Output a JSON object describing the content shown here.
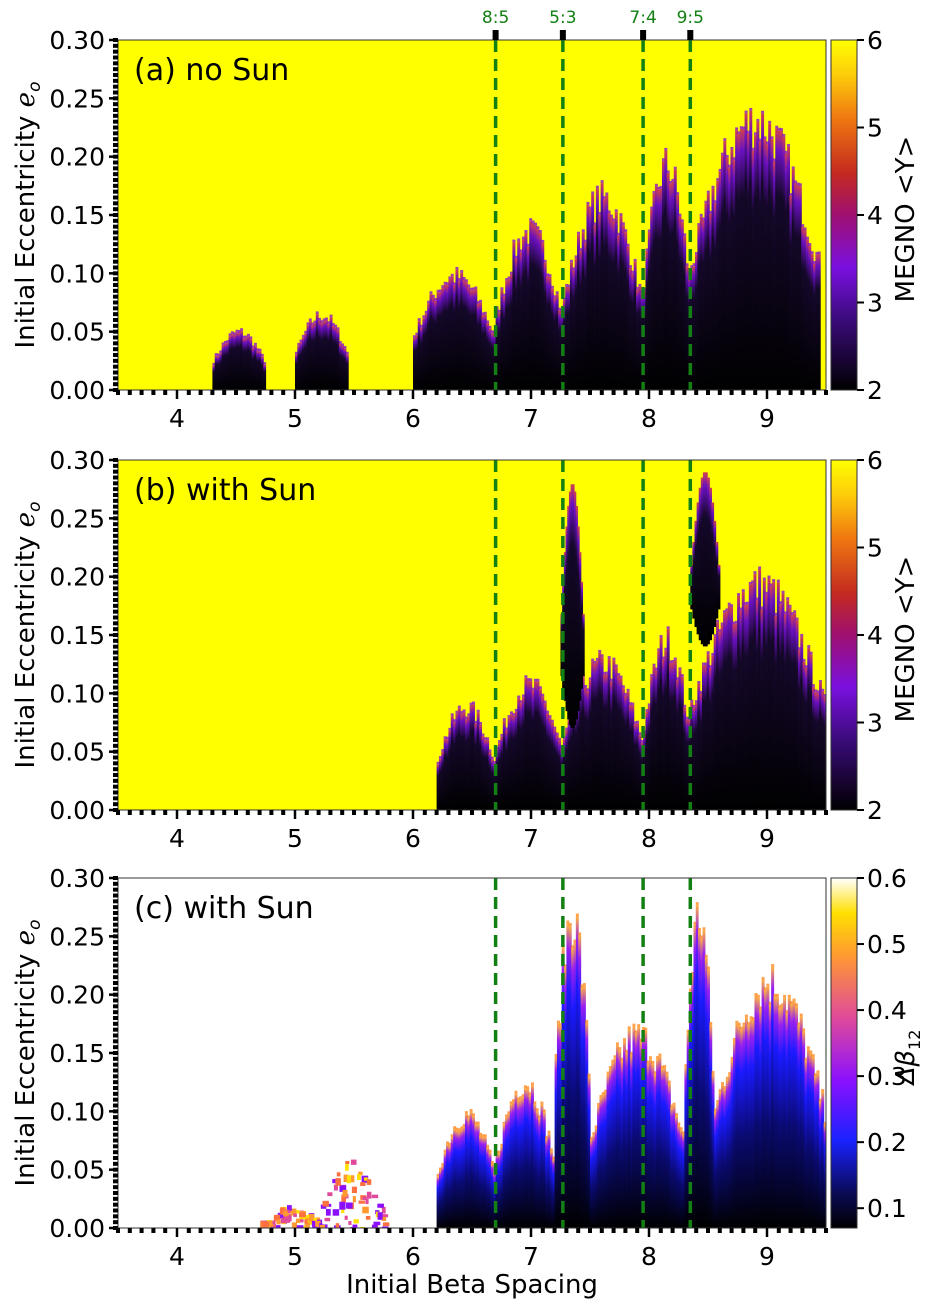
{
  "figure": {
    "xlabel": "Initial Beta Spacing",
    "ylabel_text": "Initial Eccentricity ",
    "ylabel_sym": "e",
    "ylabel_sub": "o"
  },
  "resonances": [
    {
      "label": "8:5",
      "x": 6.7
    },
    {
      "label": "5:3",
      "x": 7.27
    },
    {
      "label": "7:4",
      "x": 7.95
    },
    {
      "label": "9:5",
      "x": 8.35
    }
  ],
  "chart_data": [
    {
      "type": "heatmap",
      "panel_label": "(a) no Sun",
      "x_range": [
        3.5,
        9.5
      ],
      "y_range": [
        0.0,
        0.3
      ],
      "x_ticks": [
        4,
        5,
        6,
        7,
        8,
        9
      ],
      "y_ticks": [
        "0.00",
        "0.05",
        "0.10",
        "0.15",
        "0.20",
        "0.25",
        "0.30"
      ],
      "colorbar": {
        "label": "MEGNO  <Y>",
        "range": [
          2,
          6
        ],
        "ticks": [
          "2",
          "3",
          "4",
          "5",
          "6"
        ],
        "colormap": "gnuplot2"
      },
      "stable_regions": [
        {
          "x": [
            4.3,
            4.75
          ],
          "emax": 0.05
        },
        {
          "x": [
            5.0,
            5.45
          ],
          "emax": 0.065
        },
        {
          "x": [
            6.0,
            6.7
          ],
          "emax": 0.1
        },
        {
          "x": [
            6.7,
            7.27
          ],
          "emax": 0.14
        },
        {
          "x": [
            7.27,
            7.95
          ],
          "emax": 0.17
        },
        {
          "x": [
            7.95,
            8.35
          ],
          "emax": 0.2
        },
        {
          "x": [
            8.35,
            9.45
          ],
          "emax": 0.24
        }
      ]
    },
    {
      "type": "heatmap",
      "panel_label": "(b) with Sun",
      "x_range": [
        3.5,
        9.5
      ],
      "y_range": [
        0.0,
        0.3
      ],
      "x_ticks": [
        4,
        5,
        6,
        7,
        8,
        9
      ],
      "y_ticks": [
        "0.00",
        "0.05",
        "0.10",
        "0.15",
        "0.20",
        "0.25",
        "0.30"
      ],
      "colorbar": {
        "label": "MEGNO  <Y>",
        "range": [
          2,
          6
        ],
        "ticks": [
          "2",
          "3",
          "4",
          "5",
          "6"
        ],
        "colormap": "gnuplot2"
      },
      "stable_regions": [
        {
          "x": [
            6.2,
            6.7
          ],
          "emax": 0.09
        },
        {
          "x": [
            6.7,
            7.27
          ],
          "emax": 0.11
        },
        {
          "x": [
            7.27,
            7.95
          ],
          "emax": 0.13
        },
        {
          "x": [
            7.95,
            8.35
          ],
          "emax": 0.15
        },
        {
          "x": [
            8.35,
            9.5
          ],
          "emax": 0.2
        }
      ],
      "stable_islands": [
        {
          "x": [
            7.25,
            7.45
          ],
          "e": [
            0.07,
            0.28
          ]
        },
        {
          "x": [
            8.35,
            8.6
          ],
          "e": [
            0.14,
            0.29
          ]
        }
      ]
    },
    {
      "type": "heatmap",
      "panel_label": "(c) with Sun",
      "x_range": [
        3.5,
        9.5
      ],
      "y_range": [
        0.0,
        0.3
      ],
      "x_ticks": [
        4,
        5,
        6,
        7,
        8,
        9
      ],
      "y_ticks": [
        "0.00",
        "0.05",
        "0.10",
        "0.15",
        "0.20",
        "0.25",
        "0.30"
      ],
      "colorbar": {
        "label": "Δβ",
        "label_sub": "12",
        "range": [
          0.07,
          0.6
        ],
        "ticks": [
          "0.1",
          "0.2",
          "0.3",
          "0.4",
          "0.5",
          "0.6"
        ],
        "colormap": "gnuplot2"
      },
      "stable_regions": [
        {
          "x": [
            6.2,
            6.7
          ],
          "emax": 0.1
        },
        {
          "x": [
            6.7,
            7.2
          ],
          "emax": 0.13
        },
        {
          "x": [
            7.2,
            7.5
          ],
          "emax": 0.28
        },
        {
          "x": [
            7.5,
            8.3
          ],
          "emax": 0.17
        },
        {
          "x": [
            8.3,
            8.55
          ],
          "emax": 0.28
        },
        {
          "x": [
            8.55,
            9.5
          ],
          "emax": 0.22
        }
      ],
      "scattered_regions": [
        {
          "x": [
            4.7,
            5.2
          ],
          "emax": 0.02
        },
        {
          "x": [
            5.2,
            5.75
          ],
          "emax": 0.06
        }
      ]
    }
  ]
}
